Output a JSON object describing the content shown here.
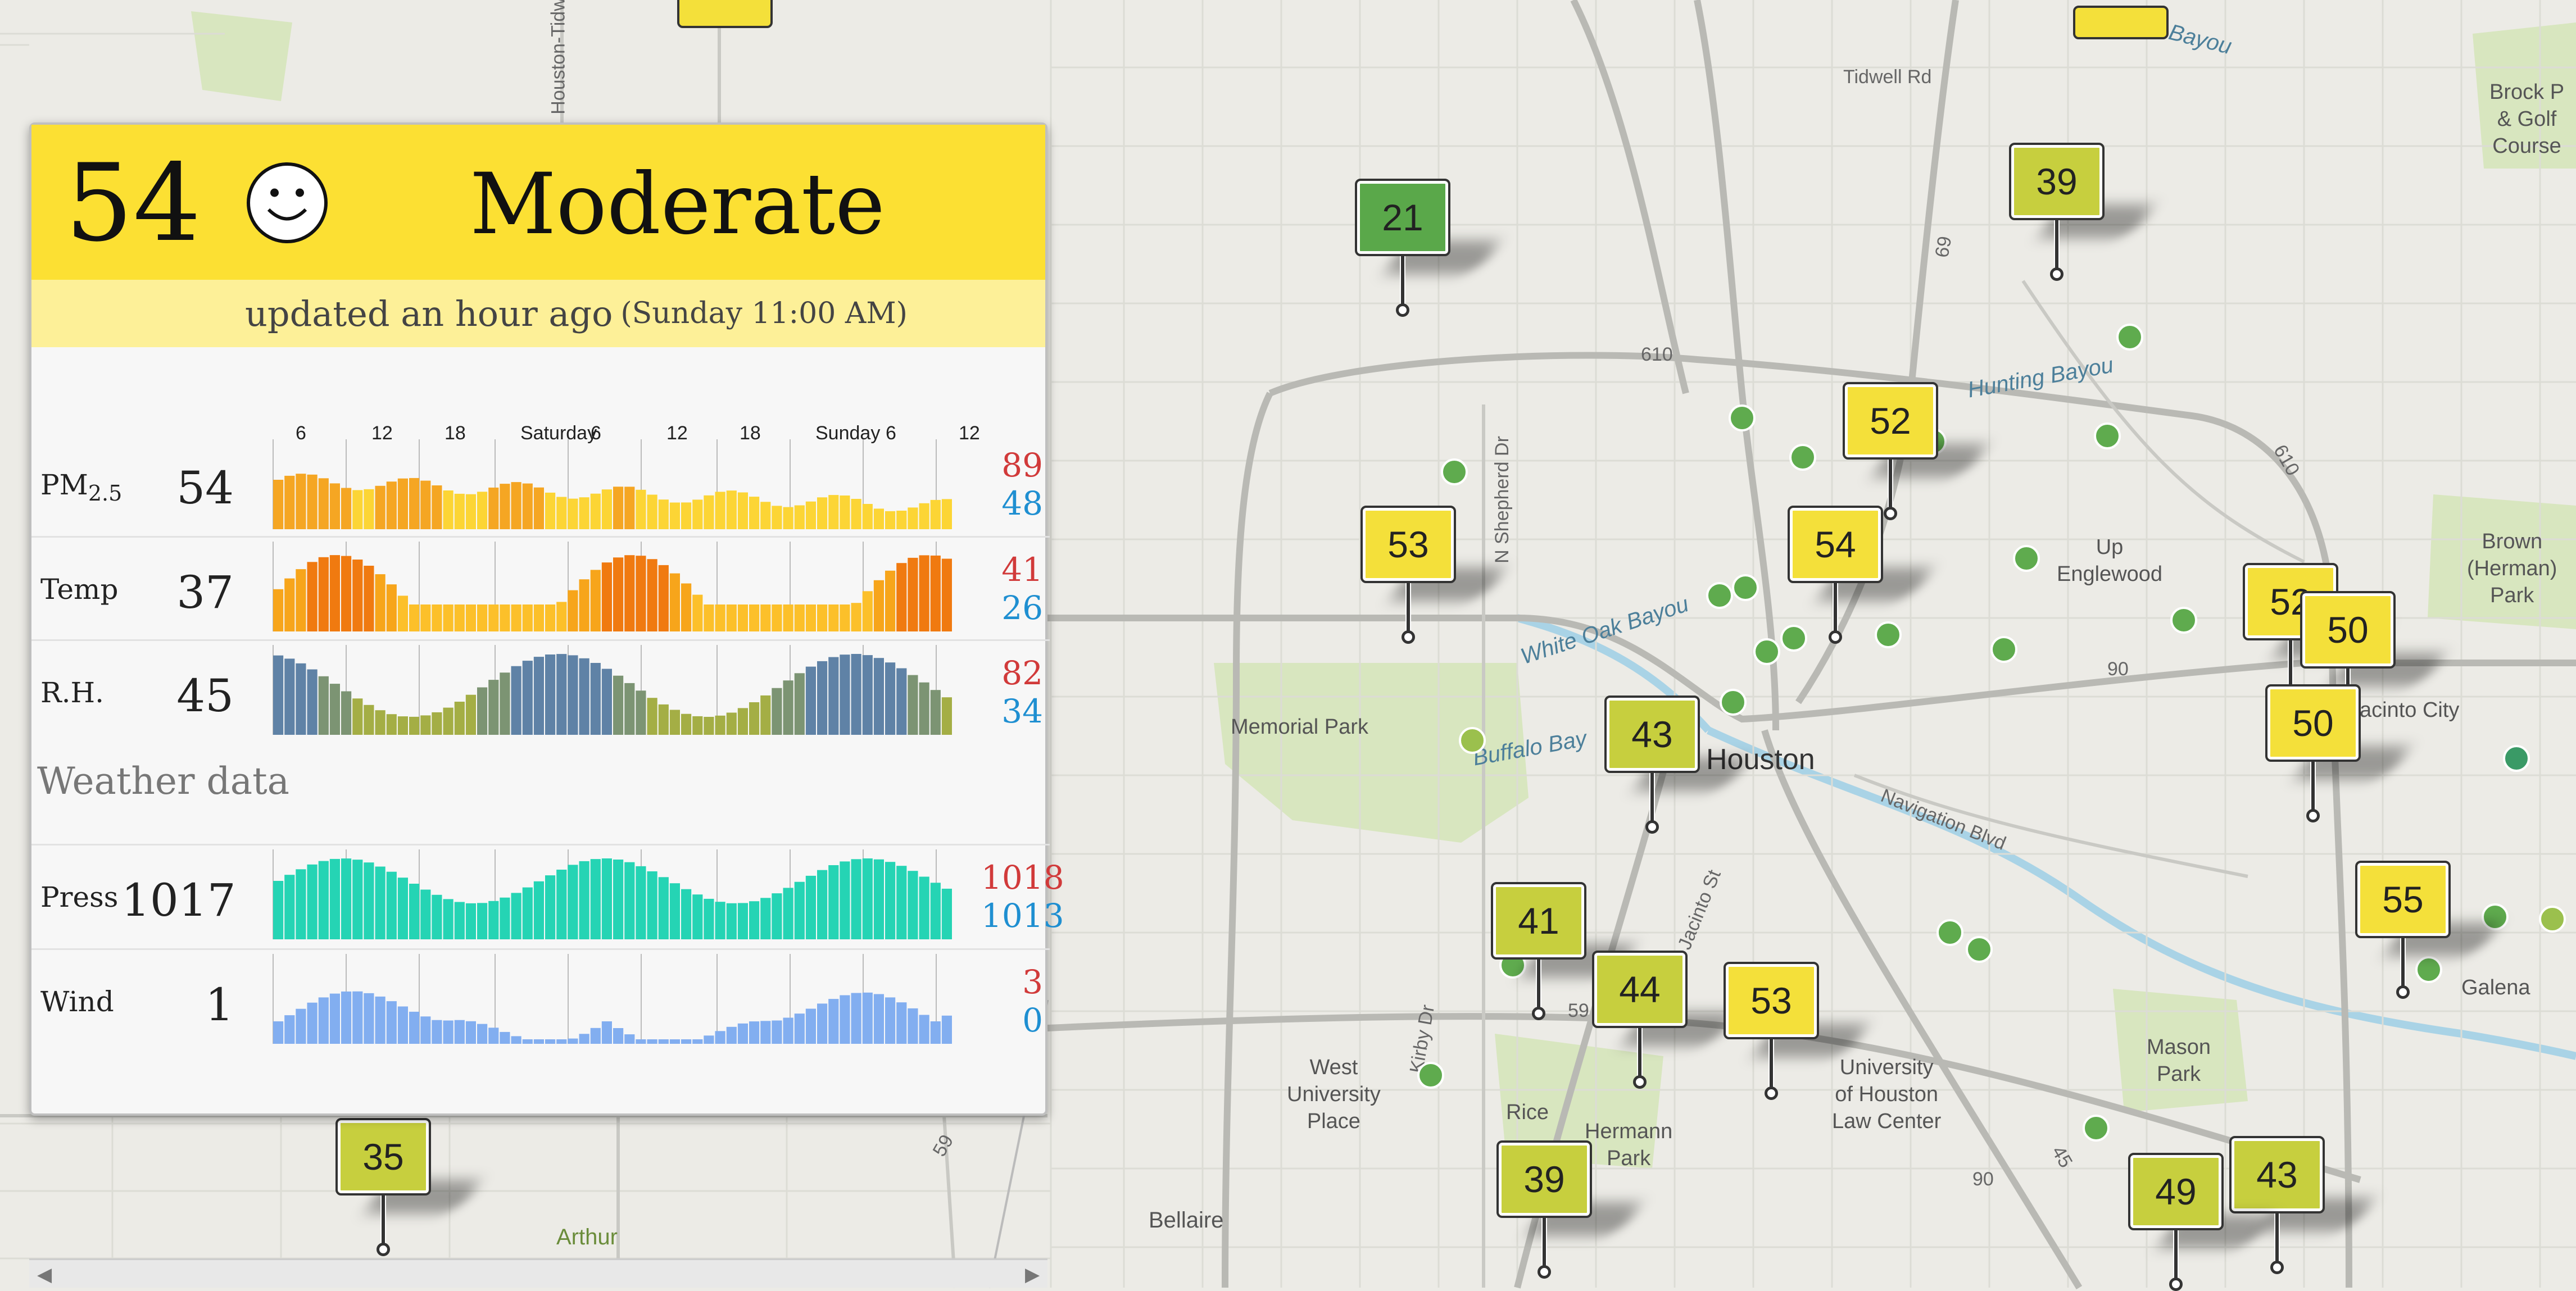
{
  "aqi": {
    "value": "54",
    "category": "Moderate",
    "updated": "updated an hour ago",
    "updated_detail": "(Sunday 11:00 AM)",
    "color": "#fce033"
  },
  "time_axis": [
    "6",
    "12",
    "18",
    "Saturday",
    "6",
    "12",
    "18",
    "Sunday",
    "6",
    "12"
  ],
  "metrics": [
    {
      "label": "PM",
      "sub": "2.5",
      "value": "54",
      "max": "89",
      "min": "48"
    },
    {
      "label": "Temp",
      "value": "37",
      "max": "41",
      "min": "26"
    },
    {
      "label": "R.H.",
      "value": "45",
      "max": "82",
      "min": "34"
    }
  ],
  "weather_title": "Weather data",
  "weather": [
    {
      "label": "Press",
      "value": "1017",
      "max": "1018",
      "min": "1013"
    },
    {
      "label": "Wind",
      "value": "1",
      "max": "3",
      "min": "0"
    }
  ],
  "map_labels": {
    "houston": "Houston",
    "tidwell": "Tidwell Rd",
    "halls_bayou": "Halls Bayou",
    "hunting_bayou": "Hunting Bayou",
    "white_oak": "White Oak Bayou",
    "buffalo": "Buffalo Bay",
    "navigation": "Navigation Blvd",
    "memorial_park": "Memorial Park",
    "up_englewood": "Up\nEnglewood",
    "brown_park": "Brown\n(Herman)\nPark",
    "jacinto_city": "Jacinto City",
    "galena": "Galena",
    "mason_park": "Mason\nPark",
    "uh_law": "University\nof Houston\nLaw Center",
    "west_university": "West\nUniversity\nPlace",
    "rice": "Rice",
    "hermann": "Hermann\nPark",
    "bellaire": "Bellaire",
    "arthur": "Arthur",
    "kirby": "Kirby Dr",
    "shepherd": "N Shepherd Dr",
    "jacinto_st": "Jacinto St",
    "houston_tidwell": "Houston-Tidw",
    "brock": "Brock P\n& Golf\nCourse",
    "r610a": "610",
    "r610b": "610",
    "r69": "69",
    "r90a": "90",
    "r90b": "90",
    "r59a": "59",
    "r59b": "59",
    "r45": "45"
  },
  "markers": [
    {
      "value": "21",
      "color": "#5aa84a"
    },
    {
      "value": "39",
      "color": "#c7cf3e"
    },
    {
      "value": "52",
      "color": "#f4e03a"
    },
    {
      "value": "54",
      "color": "#f4e03a"
    },
    {
      "value": "53",
      "color": "#f4e03a"
    },
    {
      "value": "43",
      "color": "#c7cf3e"
    },
    {
      "value": "41",
      "color": "#c7cf3e"
    },
    {
      "value": "44",
      "color": "#c7cf3e"
    },
    {
      "value": "53",
      "color": "#f4e03a"
    },
    {
      "value": "52",
      "color": "#f4e03a"
    },
    {
      "value": "50",
      "color": "#f4e03a"
    },
    {
      "value": "50",
      "color": "#f4e03a"
    },
    {
      "value": "55",
      "color": "#f4e03a"
    },
    {
      "value": "35",
      "color": "#c7cf3e"
    },
    {
      "value": "39",
      "color": "#c7cf3e"
    },
    {
      "value": "43",
      "color": "#c7cf3e"
    },
    {
      "value": "49",
      "color": "#c7cf3e"
    }
  ]
}
